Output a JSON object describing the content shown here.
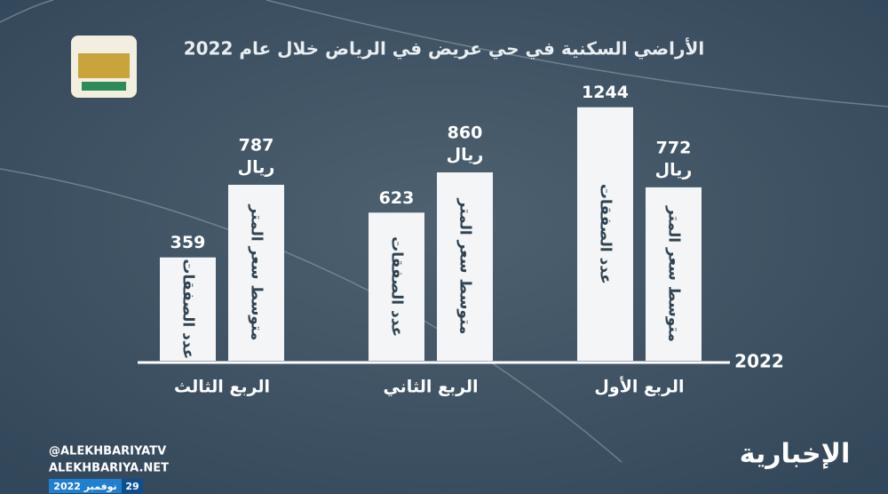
{
  "chart_data": {
    "type": "bar",
    "title": "الأراضي السكنية في حي عريض في الرياض خلال عام 2022",
    "categories": [
      "الربع الأول",
      "الربع الثاني",
      "الربع الثالث"
    ],
    "series": [
      {
        "name": "عدد الصفقات",
        "color": "#f3f5f6",
        "values": [
          1244,
          623,
          359
        ]
      },
      {
        "name": "متوسط سعر المتر",
        "color": "#f3f5f6",
        "values": [
          772,
          860,
          787
        ],
        "unit": "ريال"
      }
    ],
    "x_label": "2022",
    "ylim": [
      -250,
      1300
    ]
  },
  "branding": {
    "handles": [
      "@ALEKHBARIYATV",
      "ALEKHBARIYA.NET"
    ],
    "day": "29",
    "month_year": "نوفمبر 2022",
    "channel": "الإخبارية"
  }
}
